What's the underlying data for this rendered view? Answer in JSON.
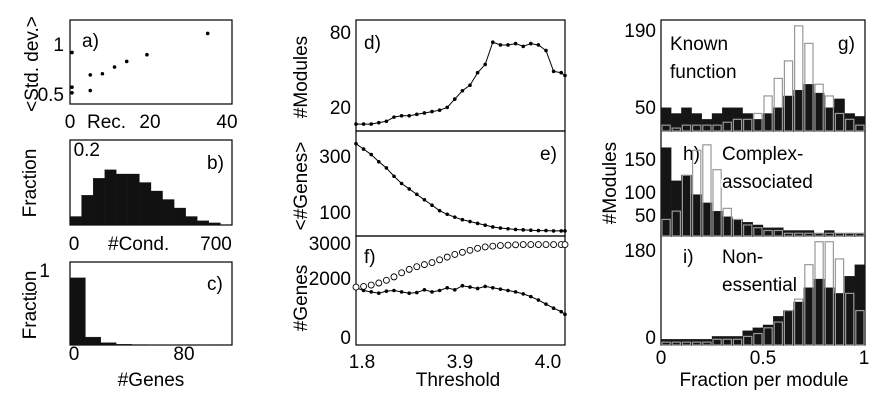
{
  "chart_data": [
    {
      "id": "a",
      "type": "scatter",
      "panel_label": "a)",
      "ylabel": "<Std. dev.>",
      "xlabel": "Rec.",
      "xlim": [
        0,
        40
      ],
      "ylim": [
        0.4,
        1.15
      ],
      "xticks": [
        "0",
        "20",
        "40"
      ],
      "yticks": [
        "0.5",
        "1"
      ],
      "x": [
        0,
        0,
        0,
        5,
        5,
        8,
        11,
        14,
        19,
        34
      ],
      "y": [
        0.86,
        0.55,
        0.5,
        0.52,
        0.66,
        0.67,
        0.73,
        0.78,
        0.84,
        1.03
      ]
    },
    {
      "id": "b",
      "type": "bar",
      "panel_label": "b)",
      "ylabel": "Fraction",
      "xlabel": "#Cond.",
      "xlim": [
        0,
        700
      ],
      "ylim": [
        0,
        0.2
      ],
      "xticks": [
        "0",
        "700"
      ],
      "yticks": [
        "0.2"
      ],
      "bin_width": 50,
      "values": [
        0.02,
        0.07,
        0.11,
        0.13,
        0.12,
        0.12,
        0.1,
        0.08,
        0.06,
        0.04,
        0.02,
        0.01,
        0.005
      ]
    },
    {
      "id": "c",
      "type": "bar",
      "panel_label": "c)",
      "ylabel": "Fraction",
      "xlabel": "#Genes",
      "xlim": [
        0,
        105
      ],
      "ylim": [
        0,
        1.05
      ],
      "xticks": [
        "0",
        "80"
      ],
      "yticks": [
        "1"
      ],
      "bin_width": 10,
      "values": [
        0.85,
        0.1,
        0.03,
        0.01,
        0.005,
        0.003,
        0.002,
        0.001,
        0.001,
        0,
        0
      ]
    },
    {
      "id": "d",
      "type": "line",
      "panel_label": "d)",
      "ylabel": "#Modules",
      "xlim": [
        1.8,
        4.0
      ],
      "ylim": [
        0,
        80
      ],
      "yticks": [
        "20",
        "80"
      ],
      "x": [
        1.8,
        1.88,
        1.96,
        2.04,
        2.12,
        2.2,
        2.28,
        2.36,
        2.44,
        2.52,
        2.6,
        2.68,
        2.76,
        2.84,
        2.92,
        3.0,
        3.08,
        3.16,
        3.24,
        3.32,
        3.4,
        3.48,
        3.56,
        3.64,
        3.72,
        3.8,
        3.88,
        3.96,
        4.0
      ],
      "y": [
        5,
        5,
        5,
        6,
        7,
        10,
        11,
        11,
        12,
        13,
        14,
        15,
        17,
        23,
        29,
        33,
        42,
        48,
        64,
        62,
        62,
        63,
        61,
        63,
        62,
        58,
        43,
        42,
        40
      ]
    },
    {
      "id": "e",
      "type": "line",
      "panel_label": "e)",
      "ylabel": "<#Genes>",
      "xlim": [
        1.8,
        4.0
      ],
      "ylim": [
        50,
        340
      ],
      "yticks": [
        "100",
        "300"
      ],
      "x": [
        1.8,
        1.88,
        1.96,
        2.04,
        2.12,
        2.2,
        2.28,
        2.36,
        2.44,
        2.52,
        2.6,
        2.68,
        2.76,
        2.84,
        2.92,
        3.0,
        3.08,
        3.16,
        3.24,
        3.32,
        3.4,
        3.48,
        3.56,
        3.64,
        3.72,
        3.8,
        3.88,
        3.96,
        4.0
      ],
      "y": [
        305,
        290,
        275,
        255,
        238,
        215,
        195,
        180,
        165,
        150,
        135,
        120,
        110,
        102,
        95,
        90,
        85,
        80,
        75,
        72,
        70,
        68,
        67,
        66,
        65,
        65,
        64,
        64,
        64
      ]
    },
    {
      "id": "f",
      "type": "line",
      "panel_label": "f)",
      "ylabel": "#Genes",
      "xlabel": "Threshold",
      "xlim": [
        1.8,
        4.0
      ],
      "ylim": [
        0,
        3200
      ],
      "xticks": [
        "1.8",
        "3.9",
        "4.0"
      ],
      "yticks": [
        "0",
        "2000",
        "3000"
      ],
      "x": [
        1.8,
        1.88,
        1.96,
        2.04,
        2.12,
        2.2,
        2.28,
        2.36,
        2.44,
        2.52,
        2.6,
        2.68,
        2.76,
        2.84,
        2.92,
        3.0,
        3.08,
        3.16,
        3.24,
        3.32,
        3.4,
        3.48,
        3.56,
        3.64,
        3.72,
        3.8,
        3.88,
        3.96,
        4.0
      ],
      "series": [
        {
          "style": "filled",
          "values": [
            1680,
            1600,
            1560,
            1520,
            1580,
            1600,
            1560,
            1520,
            1540,
            1620,
            1560,
            1600,
            1680,
            1620,
            1740,
            1700,
            1660,
            1720,
            1680,
            1640,
            1600,
            1560,
            1500,
            1420,
            1320,
            1200,
            1080,
            980,
            900
          ]
        },
        {
          "style": "open",
          "values": [
            1700,
            1720,
            1760,
            1820,
            1900,
            2000,
            2120,
            2220,
            2300,
            2360,
            2420,
            2500,
            2580,
            2660,
            2720,
            2780,
            2840,
            2880,
            2900,
            2920,
            2930,
            2940,
            2950,
            2950,
            2950,
            2950,
            2950,
            2950,
            2950
          ]
        }
      ]
    },
    {
      "id": "g",
      "type": "bar",
      "panel_label": "g)",
      "title": "Known function",
      "xlim": [
        0,
        1
      ],
      "ylim": [
        0,
        190
      ],
      "yticks": [
        "50",
        "190"
      ],
      "bin_width": 0.05,
      "series": [
        {
          "style": "filled",
          "values": [
            40,
            30,
            40,
            30,
            20,
            30,
            40,
            40,
            30,
            20,
            30,
            40,
            60,
            70,
            80,
            65,
            40,
            55,
            30,
            25
          ]
        },
        {
          "style": "open",
          "values": [
            10,
            5,
            10,
            10,
            10,
            10,
            15,
            20,
            20,
            30,
            60,
            90,
            120,
            180,
            150,
            80,
            60,
            30,
            20,
            10
          ]
        }
      ]
    },
    {
      "id": "h",
      "type": "bar",
      "panel_label": "h)",
      "title": "Complex-associated",
      "ylabel": "#Modules",
      "xlim": [
        0,
        1
      ],
      "ylim": [
        0,
        190
      ],
      "yticks": [
        "50",
        "100",
        "150"
      ],
      "bin_width": 0.05,
      "series": [
        {
          "style": "filled",
          "values": [
            160,
            100,
            110,
            75,
            60,
            45,
            35,
            30,
            25,
            20,
            15,
            15,
            10,
            10,
            10,
            5,
            10,
            5,
            5,
            5
          ]
        },
        {
          "style": "open",
          "values": [
            30,
            45,
            110,
            155,
            165,
            120,
            50,
            30,
            20,
            15,
            10,
            10,
            5,
            5,
            5,
            5,
            5,
            5,
            5,
            5
          ]
        }
      ]
    },
    {
      "id": "i",
      "type": "bar",
      "panel_label": "i)",
      "title": "Non-essential",
      "xlabel": "Fraction per module",
      "xlim": [
        0,
        1
      ],
      "ylim": [
        0,
        190
      ],
      "xticks": [
        "0",
        "0.5",
        "1"
      ],
      "yticks": [
        "0",
        "180"
      ],
      "bin_width": 0.05,
      "series": [
        {
          "style": "filled",
          "values": [
            10,
            10,
            10,
            10,
            10,
            15,
            15,
            15,
            25,
            30,
            35,
            50,
            60,
            75,
            100,
            115,
            100,
            90,
            120,
            140
          ]
        },
        {
          "style": "open",
          "values": [
            5,
            5,
            5,
            5,
            5,
            10,
            10,
            10,
            15,
            20,
            30,
            40,
            60,
            80,
            140,
            180,
            180,
            150,
            90,
            60
          ]
        }
      ]
    }
  ]
}
